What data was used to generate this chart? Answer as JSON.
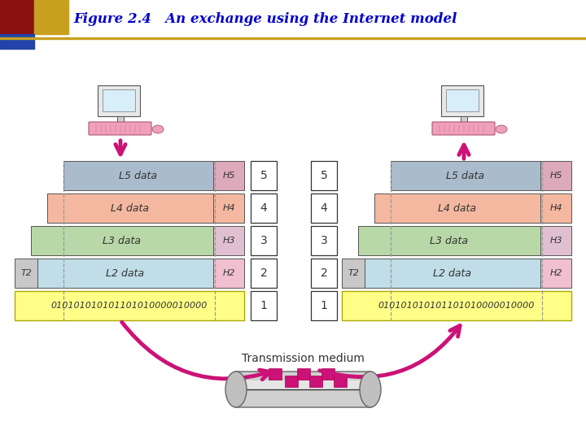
{
  "title": "Figure 2.4   An exchange using the Internet model",
  "title_color": "#0000CC",
  "bg_color": "#FFFFFF",
  "binary_string": "010101010101101010000010000",
  "transmission_label": "Transmission medium",
  "arrow_color": "#CC1177",
  "layer_colors": [
    "#AABBCC",
    "#F4B8A0",
    "#B8D8A8",
    "#C0DDE8"
  ],
  "layer_labels": [
    "L5 data",
    "L4 data",
    "L3 data",
    "L2 data"
  ],
  "right_labels_left": [
    "H5",
    "H4",
    "H3",
    "H2"
  ],
  "right_labels_right": [
    "H5",
    "H4",
    "H3",
    "H2"
  ],
  "right_colors": [
    "#DDAABB",
    "#F4B8A0",
    "#E0C0D0",
    "#F0C0D0"
  ],
  "t2_color": "#C8C8C8",
  "binary_color": "#FFFF88",
  "num_col_color": "#FFFFFF",
  "header_red": "#8B1010",
  "header_gold": "#C8A020",
  "header_blue": "#2244AA"
}
